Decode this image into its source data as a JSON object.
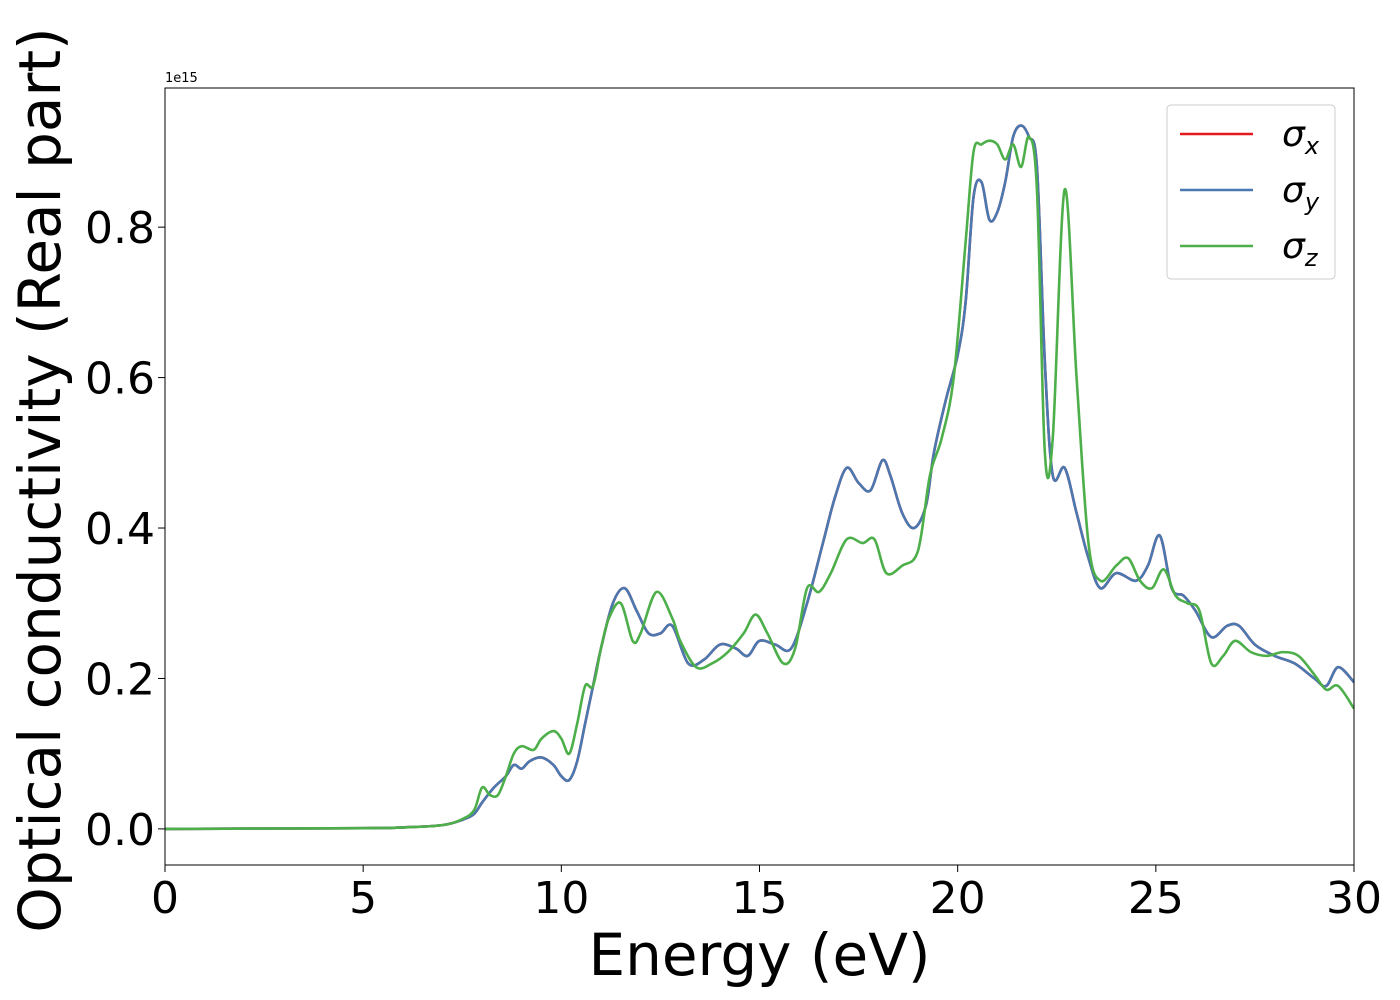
{
  "chart_data": {
    "type": "line",
    "xlabel": "Energy (eV)",
    "ylabel": "Optical conductivity (Real part)",
    "y_offset_label": "1e15",
    "xlim": [
      0,
      30
    ],
    "ylim": [
      -0.048,
      0.985
    ],
    "xticks": [
      0,
      5,
      10,
      15,
      20,
      25,
      30
    ],
    "xtick_labels": [
      "0",
      "5",
      "10",
      "15",
      "20",
      "25",
      "30"
    ],
    "yticks": [
      0.0,
      0.2,
      0.4,
      0.6,
      0.8
    ],
    "ytick_labels": [
      "0.0",
      "0.2",
      "0.4",
      "0.6",
      "0.8"
    ],
    "grid": false,
    "legend_position": "top-right",
    "series": [
      {
        "name": "σx",
        "label_base": "σ",
        "label_sub": "x",
        "color": "#e41a1c",
        "x": [
          0,
          5,
          6,
          7,
          7.5,
          7.8,
          8.0,
          8.3,
          8.6,
          8.8,
          9.0,
          9.2,
          9.5,
          9.8,
          10.0,
          10.2,
          10.4,
          10.6,
          10.8,
          11.0,
          11.3,
          11.6,
          11.9,
          12.2,
          12.5,
          12.8,
          13.2,
          13.6,
          14.0,
          14.4,
          14.7,
          15.0,
          15.4,
          15.8,
          16.2,
          16.6,
          16.9,
          17.2,
          17.5,
          17.8,
          18.1,
          18.3,
          18.6,
          18.9,
          19.2,
          19.4,
          19.7,
          20.0,
          20.2,
          20.4,
          20.6,
          20.8,
          21.0,
          21.2,
          21.4,
          21.6,
          21.8,
          22.0,
          22.2,
          22.4,
          22.7,
          23.0,
          23.3,
          23.6,
          24.0,
          24.5,
          24.8,
          25.1,
          25.4,
          25.7,
          26.0,
          26.4,
          26.8,
          27.1,
          27.5,
          28.0,
          28.5,
          29.0,
          29.3,
          29.6,
          30.0
        ],
        "y": [
          0,
          0.001,
          0.002,
          0.005,
          0.012,
          0.02,
          0.035,
          0.055,
          0.07,
          0.085,
          0.08,
          0.09,
          0.095,
          0.085,
          0.07,
          0.065,
          0.09,
          0.14,
          0.19,
          0.24,
          0.3,
          0.32,
          0.29,
          0.26,
          0.26,
          0.27,
          0.22,
          0.225,
          0.245,
          0.24,
          0.23,
          0.25,
          0.245,
          0.24,
          0.3,
          0.38,
          0.44,
          0.48,
          0.46,
          0.45,
          0.49,
          0.47,
          0.42,
          0.4,
          0.43,
          0.5,
          0.57,
          0.63,
          0.7,
          0.84,
          0.86,
          0.81,
          0.82,
          0.86,
          0.92,
          0.935,
          0.92,
          0.88,
          0.62,
          0.47,
          0.48,
          0.42,
          0.36,
          0.32,
          0.34,
          0.33,
          0.35,
          0.39,
          0.32,
          0.31,
          0.29,
          0.255,
          0.27,
          0.27,
          0.245,
          0.23,
          0.22,
          0.2,
          0.19,
          0.215,
          0.195
        ]
      },
      {
        "name": "σy",
        "label_base": "σ",
        "label_sub": "y",
        "color": "#4a78b0",
        "x": [
          0,
          5,
          6,
          7,
          7.5,
          7.8,
          8.0,
          8.3,
          8.6,
          8.8,
          9.0,
          9.2,
          9.5,
          9.8,
          10.0,
          10.2,
          10.4,
          10.6,
          10.8,
          11.0,
          11.3,
          11.6,
          11.9,
          12.2,
          12.5,
          12.8,
          13.2,
          13.6,
          14.0,
          14.4,
          14.7,
          15.0,
          15.4,
          15.8,
          16.2,
          16.6,
          16.9,
          17.2,
          17.5,
          17.8,
          18.1,
          18.3,
          18.6,
          18.9,
          19.2,
          19.4,
          19.7,
          20.0,
          20.2,
          20.4,
          20.6,
          20.8,
          21.0,
          21.2,
          21.4,
          21.6,
          21.8,
          22.0,
          22.2,
          22.4,
          22.7,
          23.0,
          23.3,
          23.6,
          24.0,
          24.5,
          24.8,
          25.1,
          25.4,
          25.7,
          26.0,
          26.4,
          26.8,
          27.1,
          27.5,
          28.0,
          28.5,
          29.0,
          29.3,
          29.6,
          30.0
        ],
        "y": [
          0,
          0.001,
          0.002,
          0.005,
          0.012,
          0.02,
          0.035,
          0.055,
          0.07,
          0.085,
          0.08,
          0.09,
          0.095,
          0.085,
          0.07,
          0.065,
          0.09,
          0.14,
          0.19,
          0.24,
          0.3,
          0.32,
          0.29,
          0.26,
          0.26,
          0.27,
          0.22,
          0.225,
          0.245,
          0.24,
          0.23,
          0.25,
          0.245,
          0.24,
          0.3,
          0.38,
          0.44,
          0.48,
          0.46,
          0.45,
          0.49,
          0.47,
          0.42,
          0.4,
          0.43,
          0.5,
          0.57,
          0.63,
          0.7,
          0.84,
          0.86,
          0.81,
          0.82,
          0.86,
          0.92,
          0.935,
          0.92,
          0.88,
          0.62,
          0.47,
          0.48,
          0.42,
          0.36,
          0.32,
          0.34,
          0.33,
          0.35,
          0.39,
          0.32,
          0.31,
          0.29,
          0.255,
          0.27,
          0.27,
          0.245,
          0.23,
          0.22,
          0.2,
          0.19,
          0.215,
          0.195
        ]
      },
      {
        "name": "σz",
        "label_base": "σ",
        "label_sub": "z",
        "color": "#4daf4a",
        "x": [
          0,
          5,
          6,
          7,
          7.5,
          7.8,
          8.0,
          8.2,
          8.4,
          8.6,
          8.8,
          9.0,
          9.3,
          9.5,
          9.8,
          10.0,
          10.2,
          10.4,
          10.6,
          10.8,
          11.0,
          11.2,
          11.5,
          11.8,
          12.0,
          12.4,
          12.8,
          13.0,
          13.4,
          13.8,
          14.2,
          14.6,
          14.9,
          15.2,
          15.6,
          15.9,
          16.2,
          16.5,
          16.8,
          17.2,
          17.6,
          17.9,
          18.2,
          18.6,
          19.0,
          19.3,
          19.6,
          19.9,
          20.2,
          20.4,
          20.6,
          20.8,
          21.0,
          21.2,
          21.4,
          21.6,
          21.8,
          22.0,
          22.2,
          22.4,
          22.7,
          23.0,
          23.3,
          23.6,
          24.0,
          24.3,
          24.6,
          24.9,
          25.2,
          25.5,
          25.8,
          26.1,
          26.4,
          26.7,
          27.0,
          27.4,
          27.8,
          28.2,
          28.6,
          29.0,
          29.3,
          29.6,
          30.0
        ],
        "y": [
          0,
          0.001,
          0.002,
          0.005,
          0.013,
          0.025,
          0.055,
          0.045,
          0.045,
          0.07,
          0.1,
          0.11,
          0.105,
          0.12,
          0.13,
          0.12,
          0.1,
          0.14,
          0.19,
          0.19,
          0.24,
          0.28,
          0.3,
          0.25,
          0.26,
          0.315,
          0.28,
          0.25,
          0.215,
          0.22,
          0.235,
          0.26,
          0.285,
          0.26,
          0.22,
          0.24,
          0.32,
          0.315,
          0.34,
          0.385,
          0.38,
          0.385,
          0.34,
          0.35,
          0.37,
          0.47,
          0.52,
          0.6,
          0.78,
          0.9,
          0.91,
          0.915,
          0.91,
          0.89,
          0.91,
          0.88,
          0.92,
          0.85,
          0.5,
          0.52,
          0.85,
          0.6,
          0.38,
          0.33,
          0.35,
          0.36,
          0.33,
          0.32,
          0.345,
          0.31,
          0.3,
          0.29,
          0.22,
          0.23,
          0.25,
          0.235,
          0.23,
          0.235,
          0.23,
          0.205,
          0.185,
          0.19,
          0.16
        ]
      }
    ]
  }
}
